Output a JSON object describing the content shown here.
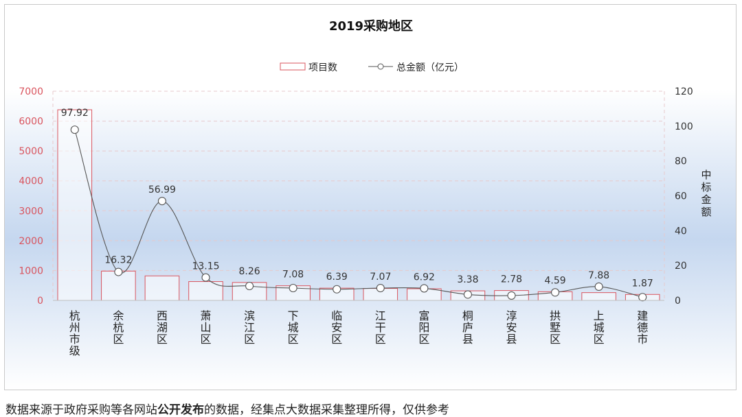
{
  "chart_data": {
    "type": "bar",
    "title": "2019采购地区",
    "categories": [
      "杭州市级",
      "余杭区",
      "西湖区",
      "萧山区",
      "滨江区",
      "下城区",
      "临安区",
      "江干区",
      "富阳区",
      "桐庐县",
      "淳安县",
      "拱墅区",
      "上城区",
      "建德市"
    ],
    "series": [
      {
        "name": "项目数",
        "kind": "bar",
        "axis": "left",
        "values": [
          6380,
          980,
          820,
          630,
          600,
          490,
          410,
          400,
          390,
          320,
          330,
          290,
          260,
          200
        ]
      },
      {
        "name": "总金额（亿元）",
        "kind": "line",
        "axis": "right",
        "values": [
          97.92,
          16.32,
          56.99,
          13.15,
          8.26,
          7.08,
          6.39,
          7.07,
          6.92,
          3.38,
          2.78,
          4.59,
          7.88,
          1.87
        ],
        "labels": [
          "97.92",
          "16.32",
          "56.99",
          "13.15",
          "8.26",
          "7.08",
          "6.39",
          "7.07",
          "6.92",
          "3.38",
          "2.78",
          "4.59",
          "7.88",
          "1.87"
        ]
      }
    ],
    "left_axis": {
      "ylim": [
        0,
        7000
      ],
      "ticks": [
        "0",
        "1000",
        "2000",
        "3000",
        "4000",
        "5000",
        "6000",
        "7000"
      ]
    },
    "right_axis": {
      "ylim": [
        0,
        120
      ],
      "ticks": [
        "0",
        "20",
        "40",
        "60",
        "80",
        "100",
        "120"
      ],
      "label": "中标金额"
    },
    "legend_position": "top-center",
    "grid": true,
    "colors": {
      "bar_stroke": "#d9545e",
      "line": "#555555",
      "left_axis_text": "#d9545e",
      "right_axis_text": "#333333",
      "bg_band": "#c5d7ef"
    }
  },
  "footer": {
    "part1": "数据来源于政府采购等各网站",
    "bold": "公开发布",
    "part2": "的数据，经集点大数据采集整理所得，仅供参考"
  }
}
